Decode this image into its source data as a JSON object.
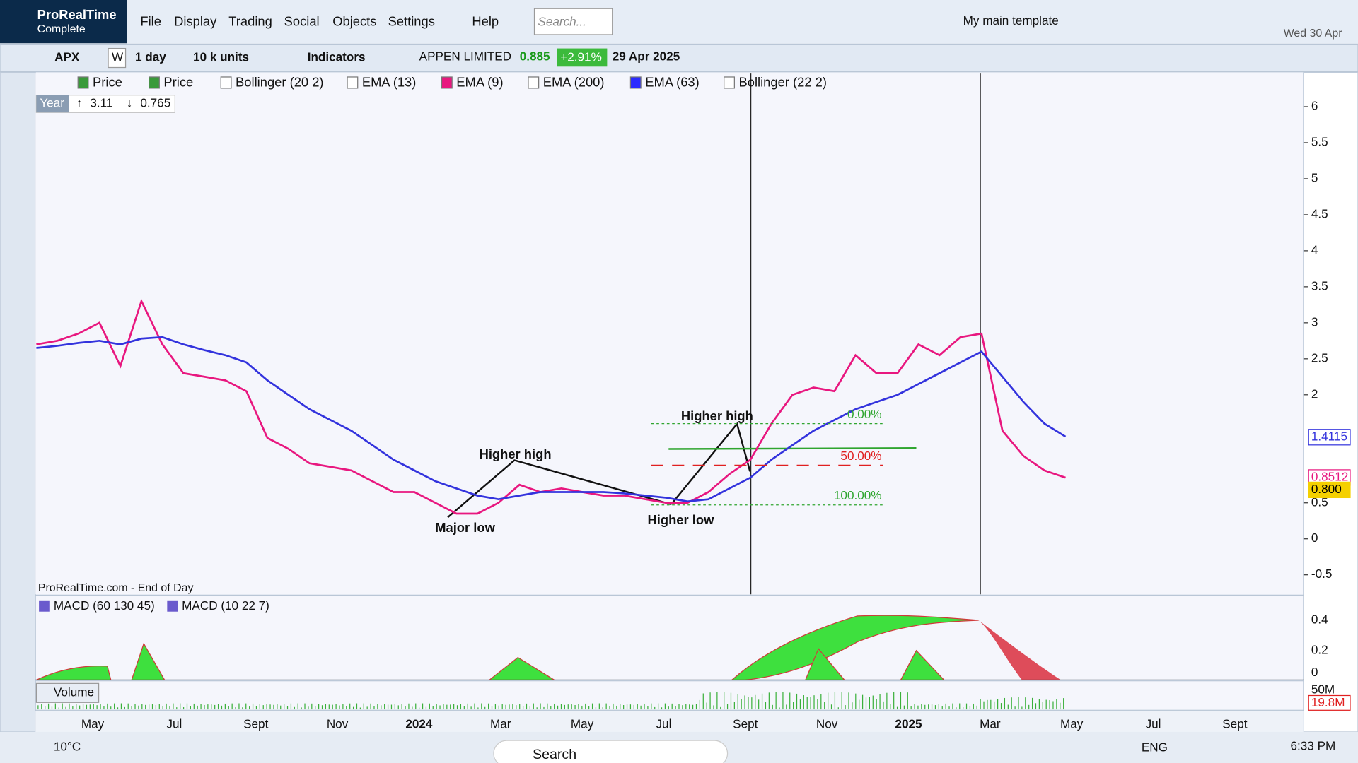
{
  "app": {
    "name": "ProRealTime",
    "edition": "Complete",
    "menu": [
      "File",
      "Display",
      "Trading",
      "Social",
      "Objects",
      "Settings",
      "Help"
    ],
    "search_placeholder": "Search...",
    "template": "My main template",
    "date": "Wed 30 Apr"
  },
  "toolbar": {
    "symbol": "APX",
    "period": "W",
    "timeframe": "1 day",
    "units": "10 k units",
    "indicators": "Indicators",
    "instrument": "APPEN LIMITED",
    "last": 0.885,
    "change": "+2.91%",
    "date": "29 Apr 2025"
  },
  "legend": [
    {
      "name": "Price",
      "color": "#3a9a3a"
    },
    {
      "name": "Price",
      "color": "#3a9a3a"
    },
    {
      "name": "Bollinger (20 2)",
      "color": "#ffffff"
    },
    {
      "name": "EMA (13)",
      "color": "#ffffff"
    },
    {
      "name": "EMA (9)",
      "color": "#e8177f"
    },
    {
      "name": "EMA (200)",
      "color": "#ffffff"
    },
    {
      "name": "EMA (63)",
      "color": "#2b2bff"
    },
    {
      "name": "Bollinger (22 2)",
      "color": "#ffffff"
    }
  ],
  "year_range": {
    "label": "Year",
    "high": 3.11,
    "low": 0.765
  },
  "chart_data": {
    "type": "line",
    "source": "ProRealTime.com - End of Day",
    "x_labels": [
      "May",
      "Jul",
      "Sept",
      "Nov",
      "2024",
      "Mar",
      "May",
      "Jul",
      "Sept",
      "Nov",
      "2025",
      "Mar",
      "May",
      "Jul",
      "Sept"
    ],
    "ylim": [
      -0.77,
      6.46
    ],
    "yticks": [
      6,
      5.5,
      5,
      4.5,
      4,
      3.5,
      3,
      2.5,
      2,
      0.5,
      0,
      -0.5
    ],
    "series": [
      {
        "name": "EMA (9)",
        "color": "#e8177f",
        "values": [
          2.7,
          2.75,
          2.85,
          3.0,
          2.4,
          3.3,
          2.7,
          2.3,
          2.25,
          2.2,
          2.05,
          1.4,
          1.25,
          1.05,
          1.0,
          0.95,
          0.8,
          0.65,
          0.65,
          0.5,
          0.35,
          0.35,
          0.5,
          0.75,
          0.65,
          0.7,
          0.65,
          0.6,
          0.6,
          0.55,
          0.5,
          0.5,
          0.65,
          0.9,
          1.1,
          1.6,
          2.0,
          2.1,
          2.05,
          2.55,
          2.3,
          2.3,
          2.7,
          2.55,
          2.8,
          2.85,
          1.5,
          1.15,
          0.95,
          0.85
        ]
      },
      {
        "name": "EMA (63)",
        "color": "#3333dd",
        "values": [
          2.65,
          2.68,
          2.72,
          2.75,
          2.7,
          2.78,
          2.8,
          2.7,
          2.62,
          2.55,
          2.45,
          2.2,
          2.0,
          1.8,
          1.65,
          1.5,
          1.3,
          1.1,
          0.95,
          0.8,
          0.7,
          0.6,
          0.55,
          0.6,
          0.65,
          0.65,
          0.65,
          0.65,
          0.63,
          0.6,
          0.57,
          0.52,
          0.55,
          0.7,
          0.85,
          1.1,
          1.3,
          1.5,
          1.65,
          1.8,
          1.9,
          2.0,
          2.15,
          2.3,
          2.45,
          2.6,
          2.25,
          1.9,
          1.6,
          1.42
        ]
      }
    ],
    "price_labels": [
      {
        "value": 1.4115,
        "color": "#3333dd"
      },
      {
        "value": 0.8512,
        "color": "#e8177f"
      },
      {
        "value": {
          "value": 0.8,
          "label": "0.800"
        },
        "color": "#f5d000"
      }
    ],
    "fibonacci": [
      {
        "label": "0.00%",
        "price": 1.6
      },
      {
        "label": "50.00%",
        "price": 1.02
      },
      {
        "label": "100.00%",
        "price": 0.47
      }
    ],
    "annotations": [
      "Higher high",
      "Higher high",
      "Major low",
      "Higher low"
    ]
  },
  "macd": {
    "legend": [
      "MACD (60 130 45)",
      "MACD (10 22 7)"
    ],
    "yticks": [
      0.4,
      0.2,
      0
    ]
  },
  "volume": {
    "legend": "Volume",
    "ticks": [
      {
        "value": 50000000,
        "label": "50M"
      }
    ],
    "last": {
      "value": 19800000,
      "label": "19.8M"
    }
  },
  "taskbar": {
    "temperature": "10°C",
    "search": "Search",
    "language": "ENG",
    "time": "6:33 PM"
  }
}
